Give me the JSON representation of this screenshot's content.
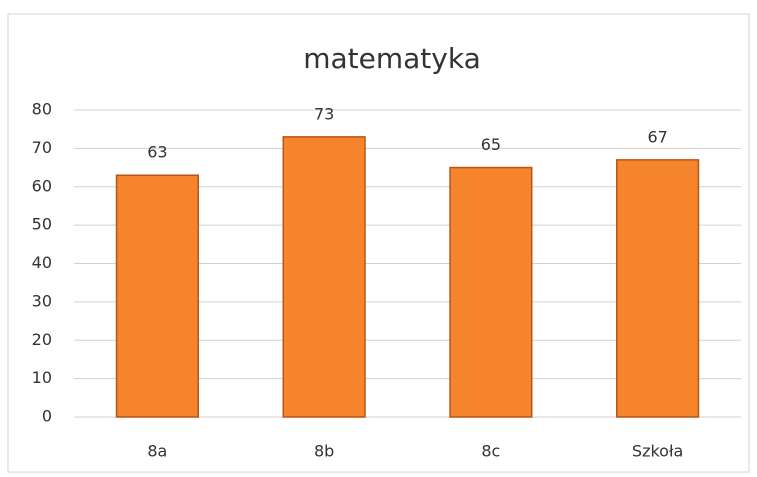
{
  "chart_data": {
    "type": "bar",
    "title": "matematyka",
    "categories": [
      "8a",
      "8b",
      "8c",
      "Szkoła"
    ],
    "values": [
      63,
      73,
      65,
      67
    ],
    "color": "#f5842c",
    "ylim": [
      0,
      80
    ],
    "yticks": [
      0,
      10,
      20,
      30,
      40,
      50,
      60,
      70,
      80
    ],
    "grid": true
  }
}
